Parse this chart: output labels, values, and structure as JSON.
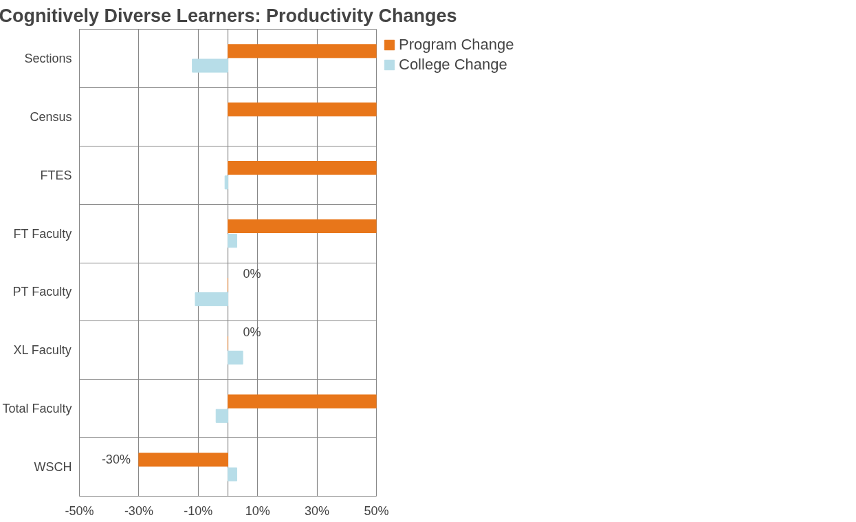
{
  "chart_data": {
    "type": "bar",
    "orientation": "horizontal",
    "title": "Cognitively Diverse Learners: Productivity Changes",
    "categories": [
      "Sections",
      "Census",
      "FTES",
      "FT Faculty",
      "PT Faculty",
      "XL Faculty",
      "Total Faculty",
      "WSCH"
    ],
    "series": [
      {
        "name": "Program Change",
        "color": "#e8761a",
        "values": [
          50,
          50,
          50,
          50,
          0,
          0,
          50,
          -30
        ],
        "value_labels": [
          null,
          null,
          null,
          null,
          "0%",
          "0%",
          null,
          "-30%"
        ]
      },
      {
        "name": "College Change",
        "color": "#b7dde8",
        "values": [
          -12,
          null,
          -1,
          3,
          -11,
          5,
          -4,
          3
        ]
      }
    ],
    "xlim": [
      -50,
      50
    ],
    "xticks": [
      {
        "value": -50,
        "label": "-50%"
      },
      {
        "value": -30,
        "label": "-30%"
      },
      {
        "value": -10,
        "label": "-10%"
      },
      {
        "value": 0,
        "label": null
      },
      {
        "value": 10,
        "label": "10%"
      },
      {
        "value": 30,
        "label": "30%"
      },
      {
        "value": 50,
        "label": "50%"
      }
    ],
    "grid": true,
    "legend": "right"
  }
}
